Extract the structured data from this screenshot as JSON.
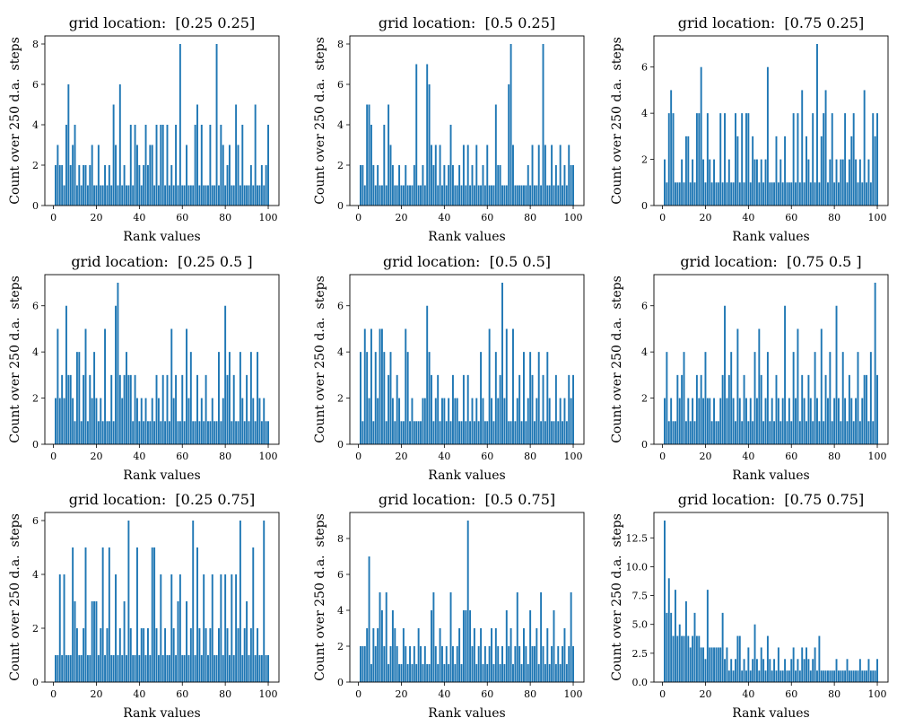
{
  "chart_data": [
    {
      "type": "bar",
      "title": "grid location:  [0.25 0.25]",
      "xlabel": "Rank values",
      "ylabel": "Count over 250 d.a.  steps",
      "xlim": [
        -4,
        105
      ],
      "ylim": [
        0,
        8.4
      ],
      "xticks": [
        0,
        20,
        40,
        60,
        80,
        100
      ],
      "yticks": [
        0,
        2,
        4,
        6,
        8
      ],
      "ytick_labels": [
        "0",
        "2",
        "4",
        "6",
        "8"
      ],
      "color": "#1f77b4",
      "x_start": 1,
      "values": [
        2,
        3,
        2,
        2,
        1,
        4,
        6,
        2,
        3,
        4,
        1,
        2,
        1,
        2,
        2,
        1,
        2,
        3,
        1,
        1,
        3,
        1,
        1,
        2,
        1,
        2,
        1,
        5,
        3,
        1,
        6,
        1,
        2,
        1,
        1,
        4,
        1,
        4,
        3,
        2,
        1,
        2,
        4,
        2,
        3,
        3,
        1,
        4,
        1,
        4,
        4,
        1,
        4,
        1,
        2,
        1,
        4,
        1,
        8,
        1,
        1,
        3,
        1,
        1,
        1,
        4,
        5,
        1,
        4,
        1,
        1,
        1,
        4,
        1,
        1,
        8,
        1,
        4,
        3,
        1,
        2,
        3,
        1,
        1,
        5,
        3,
        1,
        4,
        1,
        1,
        1,
        2,
        1,
        5,
        1,
        1,
        2,
        1,
        2,
        4
      ]
    },
    {
      "type": "bar",
      "title": "grid location:  [0.5 0.25]",
      "xlabel": "Rank values",
      "ylabel": "Count over 250 d.a.  steps",
      "xlim": [
        -4,
        105
      ],
      "ylim": [
        0,
        8.4
      ],
      "xticks": [
        0,
        20,
        40,
        60,
        80,
        100
      ],
      "yticks": [
        0,
        2,
        4,
        6,
        8
      ],
      "ytick_labels": [
        "0",
        "2",
        "4",
        "6",
        "8"
      ],
      "color": "#1f77b4",
      "x_start": 1,
      "values": [
        2,
        2,
        1,
        5,
        5,
        4,
        2,
        1,
        2,
        1,
        1,
        4,
        1,
        5,
        3,
        2,
        1,
        1,
        2,
        1,
        1,
        2,
        1,
        1,
        1,
        2,
        7,
        1,
        1,
        2,
        1,
        7,
        6,
        3,
        2,
        3,
        1,
        3,
        1,
        2,
        1,
        2,
        4,
        2,
        1,
        1,
        2,
        1,
        3,
        1,
        3,
        1,
        2,
        1,
        3,
        1,
        1,
        2,
        1,
        3,
        1,
        1,
        1,
        5,
        2,
        2,
        1,
        1,
        1,
        6,
        8,
        3,
        1,
        1,
        1,
        1,
        1,
        1,
        2,
        1,
        3,
        1,
        1,
        3,
        1,
        8,
        3,
        1,
        1,
        3,
        1,
        2,
        1,
        3,
        1,
        2,
        1,
        3,
        2,
        2
      ]
    },
    {
      "type": "bar",
      "title": "grid location:  [0.75 0.25]",
      "xlabel": "Rank values",
      "ylabel": "Count over 250 d.a.  steps",
      "xlim": [
        -4,
        105
      ],
      "ylim": [
        0,
        7.35
      ],
      "xticks": [
        0,
        20,
        40,
        60,
        80,
        100
      ],
      "yticks": [
        0,
        2,
        4,
        6
      ],
      "ytick_labels": [
        "0",
        "2",
        "4",
        "6"
      ],
      "color": "#1f77b4",
      "x_start": 1,
      "values": [
        2,
        1,
        4,
        5,
        4,
        1,
        1,
        1,
        2,
        1,
        3,
        3,
        1,
        2,
        1,
        4,
        4,
        6,
        2,
        1,
        4,
        2,
        1,
        2,
        1,
        1,
        4,
        1,
        4,
        1,
        2,
        1,
        1,
        4,
        3,
        1,
        4,
        1,
        4,
        4,
        1,
        3,
        2,
        2,
        1,
        2,
        1,
        2,
        6,
        1,
        1,
        1,
        3,
        1,
        2,
        1,
        3,
        1,
        1,
        1,
        4,
        1,
        4,
        1,
        5,
        1,
        3,
        2,
        1,
        4,
        1,
        7,
        1,
        3,
        4,
        5,
        1,
        2,
        4,
        1,
        2,
        1,
        2,
        2,
        4,
        1,
        2,
        3,
        4,
        2,
        1,
        2,
        1,
        5,
        1,
        2,
        1,
        4,
        3,
        4
      ]
    },
    {
      "type": "bar",
      "title": "grid location:  [0.25 0.5 ]",
      "xlabel": "Rank values",
      "ylabel": "Count over 250 d.a.  steps",
      "xlim": [
        -4,
        105
      ],
      "ylim": [
        0,
        7.35
      ],
      "xticks": [
        0,
        20,
        40,
        60,
        80,
        100
      ],
      "yticks": [
        0,
        2,
        4,
        6
      ],
      "ytick_labels": [
        "0",
        "2",
        "4",
        "6"
      ],
      "color": "#1f77b4",
      "x_start": 1,
      "values": [
        2,
        5,
        2,
        3,
        2,
        6,
        3,
        3,
        2,
        1,
        4,
        4,
        1,
        3,
        5,
        1,
        3,
        2,
        4,
        2,
        1,
        2,
        1,
        5,
        1,
        1,
        3,
        1,
        6,
        7,
        3,
        2,
        3,
        4,
        3,
        3,
        1,
        3,
        2,
        1,
        2,
        1,
        2,
        1,
        1,
        2,
        1,
        3,
        2,
        1,
        3,
        1,
        3,
        1,
        5,
        2,
        3,
        1,
        1,
        3,
        1,
        5,
        2,
        4,
        1,
        1,
        3,
        1,
        2,
        1,
        3,
        1,
        1,
        2,
        1,
        1,
        4,
        1,
        2,
        6,
        3,
        4,
        1,
        3,
        1,
        1,
        4,
        2,
        1,
        3,
        1,
        4,
        2,
        1,
        4,
        2,
        1,
        2,
        1,
        1
      ]
    },
    {
      "type": "bar",
      "title": "grid location:  [0.5 0.5]",
      "xlabel": "Rank values",
      "ylabel": "Count over 250 d.a.  steps",
      "xlim": [
        -4,
        105
      ],
      "ylim": [
        0,
        7.35
      ],
      "xticks": [
        0,
        20,
        40,
        60,
        80,
        100
      ],
      "yticks": [
        0,
        2,
        4,
        6
      ],
      "ytick_labels": [
        "0",
        "2",
        "4",
        "6"
      ],
      "color": "#1f77b4",
      "x_start": 1,
      "values": [
        4,
        1,
        5,
        4,
        2,
        5,
        1,
        4,
        2,
        5,
        5,
        4,
        1,
        3,
        4,
        2,
        1,
        3,
        2,
        1,
        1,
        5,
        4,
        1,
        2,
        1,
        1,
        1,
        1,
        2,
        2,
        6,
        4,
        3,
        1,
        2,
        3,
        1,
        2,
        2,
        1,
        2,
        1,
        3,
        2,
        2,
        1,
        1,
        3,
        1,
        3,
        1,
        2,
        1,
        2,
        1,
        4,
        2,
        1,
        1,
        5,
        2,
        1,
        4,
        2,
        3,
        7,
        2,
        5,
        1,
        1,
        5,
        1,
        2,
        3,
        1,
        4,
        1,
        2,
        4,
        3,
        1,
        2,
        4,
        1,
        3,
        1,
        4,
        2,
        1,
        1,
        3,
        1,
        2,
        1,
        2,
        1,
        3,
        2,
        3
      ]
    },
    {
      "type": "bar",
      "title": "grid location:  [0.75 0.5 ]",
      "xlabel": "Rank values",
      "ylabel": "Count over 250 d.a.  steps",
      "xlim": [
        -4,
        105
      ],
      "ylim": [
        0,
        7.35
      ],
      "xticks": [
        0,
        20,
        40,
        60,
        80,
        100
      ],
      "yticks": [
        0,
        2,
        4,
        6
      ],
      "ytick_labels": [
        "0",
        "2",
        "4",
        "6"
      ],
      "color": "#1f77b4",
      "x_start": 1,
      "values": [
        2,
        4,
        1,
        2,
        1,
        1,
        3,
        2,
        3,
        4,
        1,
        2,
        1,
        2,
        1,
        3,
        2,
        3,
        2,
        4,
        2,
        2,
        1,
        2,
        1,
        1,
        2,
        3,
        6,
        2,
        3,
        4,
        2,
        1,
        5,
        2,
        1,
        3,
        2,
        1,
        2,
        1,
        4,
        2,
        5,
        3,
        1,
        2,
        4,
        1,
        2,
        1,
        3,
        2,
        1,
        2,
        6,
        1,
        2,
        1,
        4,
        2,
        5,
        1,
        3,
        2,
        1,
        3,
        2,
        1,
        4,
        2,
        1,
        5,
        1,
        3,
        2,
        4,
        1,
        2,
        6,
        2,
        1,
        4,
        2,
        1,
        3,
        2,
        1,
        2,
        4,
        1,
        2,
        3,
        3,
        1,
        4,
        1,
        7,
        3
      ]
    },
    {
      "type": "bar",
      "title": "grid location:  [0.25 0.75]",
      "xlabel": "Rank values",
      "ylabel": "Count over 250 d.a.  steps",
      "xlim": [
        -4,
        105
      ],
      "ylim": [
        0,
        6.3
      ],
      "xticks": [
        0,
        20,
        40,
        60,
        80,
        100
      ],
      "yticks": [
        0,
        2,
        4,
        6
      ],
      "ytick_labels": [
        "0",
        "2",
        "4",
        "6"
      ],
      "color": "#1f77b4",
      "x_start": 1,
      "values": [
        1,
        1,
        4,
        1,
        4,
        1,
        1,
        1,
        5,
        3,
        2,
        1,
        1,
        2,
        5,
        1,
        1,
        3,
        3,
        3,
        1,
        2,
        5,
        1,
        2,
        5,
        1,
        1,
        4,
        1,
        2,
        1,
        3,
        1,
        6,
        2,
        1,
        1,
        5,
        1,
        2,
        2,
        1,
        2,
        1,
        5,
        5,
        2,
        1,
        4,
        1,
        2,
        1,
        1,
        4,
        2,
        1,
        3,
        4,
        1,
        1,
        3,
        1,
        2,
        6,
        1,
        5,
        2,
        1,
        4,
        2,
        1,
        2,
        4,
        1,
        1,
        2,
        4,
        1,
        4,
        2,
        1,
        4,
        1,
        4,
        2,
        6,
        1,
        2,
        3,
        1,
        2,
        5,
        1,
        2,
        1,
        1,
        6,
        1,
        1
      ]
    },
    {
      "type": "bar",
      "title": "grid location:  [0.5 0.75]",
      "xlabel": "Rank values",
      "ylabel": "Count over 250 d.a.  steps",
      "xlim": [
        -4,
        105
      ],
      "ylim": [
        0,
        9.45
      ],
      "xticks": [
        0,
        20,
        40,
        60,
        80,
        100
      ],
      "yticks": [
        0,
        2,
        4,
        6,
        8
      ],
      "ytick_labels": [
        "0",
        "2",
        "4",
        "6",
        "8"
      ],
      "color": "#1f77b4",
      "x_start": 1,
      "values": [
        2,
        2,
        2,
        3,
        7,
        1,
        3,
        2,
        3,
        5,
        4,
        2,
        5,
        1,
        2,
        4,
        3,
        2,
        1,
        1,
        3,
        2,
        1,
        2,
        1,
        2,
        1,
        3,
        2,
        1,
        2,
        1,
        1,
        4,
        5,
        2,
        1,
        3,
        2,
        1,
        2,
        1,
        5,
        2,
        1,
        2,
        3,
        1,
        4,
        4,
        9,
        4,
        2,
        3,
        1,
        2,
        3,
        1,
        2,
        1,
        2,
        3,
        1,
        3,
        2,
        1,
        2,
        1,
        4,
        2,
        3,
        1,
        2,
        5,
        2,
        1,
        3,
        2,
        1,
        4,
        2,
        2,
        3,
        1,
        5,
        2,
        1,
        3,
        1,
        2,
        4,
        1,
        2,
        1,
        2,
        3,
        1,
        2,
        5,
        2
      ]
    },
    {
      "type": "bar",
      "title": "grid location:  [0.75 0.75]",
      "xlabel": "Rank values",
      "ylabel": "Count over 250 d.a.  steps",
      "xlim": [
        -4,
        105
      ],
      "ylim": [
        0,
        14.7
      ],
      "xticks": [
        0,
        20,
        40,
        60,
        80,
        100
      ],
      "yticks": [
        0,
        2.5,
        5,
        7.5,
        10,
        12.5
      ],
      "ytick_labels": [
        "0.0",
        "2.5",
        "5.0",
        "7.5",
        "10.0",
        "12.5"
      ],
      "color": "#1f77b4",
      "x_start": 1,
      "values": [
        14,
        6,
        9,
        6,
        4,
        8,
        4,
        5,
        4,
        4,
        7,
        4,
        3,
        4,
        6,
        4,
        4,
        3,
        3,
        2,
        8,
        3,
        3,
        3,
        3,
        3,
        3,
        6,
        2,
        3,
        1,
        2,
        1,
        2,
        4,
        4,
        1,
        2,
        1,
        3,
        1,
        2,
        5,
        2,
        1,
        3,
        2,
        1,
        4,
        2,
        1,
        2,
        1,
        3,
        1,
        1,
        2,
        1,
        1,
        2,
        3,
        1,
        2,
        1,
        3,
        2,
        3,
        2,
        1,
        2,
        3,
        1,
        4,
        1,
        1,
        1,
        1,
        1,
        1,
        1,
        2,
        1,
        1,
        1,
        1,
        2,
        1,
        1,
        1,
        1,
        1,
        2,
        1,
        1,
        1,
        2,
        1,
        1,
        1,
        2
      ]
    }
  ]
}
